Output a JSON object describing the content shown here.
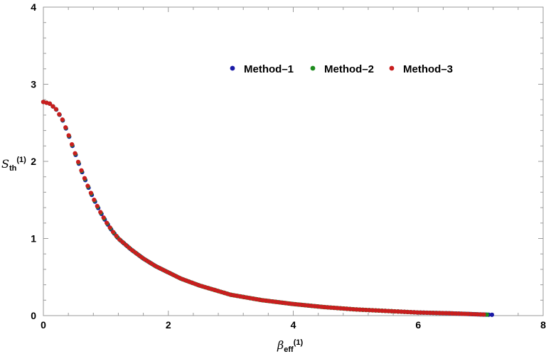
{
  "chart_data": {
    "type": "scatter",
    "xlabel": {
      "symbol": "β",
      "sub": "eff",
      "sup": "(1)"
    },
    "ylabel": {
      "symbol": "S",
      "sub": "th",
      "sup": "(1)"
    },
    "xlim": [
      0,
      8
    ],
    "ylim": [
      0,
      4
    ],
    "xticks": [
      "0",
      "2",
      "4",
      "6",
      "8"
    ],
    "yticks": [
      "0",
      "1",
      "2",
      "3",
      "4"
    ],
    "legend_position": "top-center",
    "grid": false,
    "series": [
      {
        "name": "Method–1",
        "color": "#1a1aa6",
        "x_max": 7.18,
        "n": 140
      },
      {
        "name": "Method–2",
        "color": "#1e8c1e",
        "x_max": 7.1,
        "n": 140
      },
      {
        "name": "Method–3",
        "color": "#c81e1e",
        "x_max": 7.05,
        "n": 140
      }
    ],
    "curve": {
      "description_points_x": [
        0.0,
        0.1,
        0.2,
        0.3,
        0.4,
        0.5,
        0.6,
        0.7,
        0.8,
        0.9,
        1.0,
        1.1,
        1.2,
        1.4,
        1.6,
        1.8,
        2.0,
        2.2,
        2.5,
        3.0,
        3.5,
        4.0,
        4.5,
        5.0,
        5.5,
        6.0,
        6.5,
        7.0,
        7.2
      ],
      "description_points_y": [
        2.77,
        2.75,
        2.68,
        2.55,
        2.35,
        2.12,
        1.9,
        1.7,
        1.52,
        1.36,
        1.22,
        1.1,
        1.0,
        0.86,
        0.74,
        0.64,
        0.56,
        0.48,
        0.39,
        0.27,
        0.2,
        0.15,
        0.11,
        0.08,
        0.06,
        0.04,
        0.03,
        0.015,
        0.01
      ]
    }
  }
}
